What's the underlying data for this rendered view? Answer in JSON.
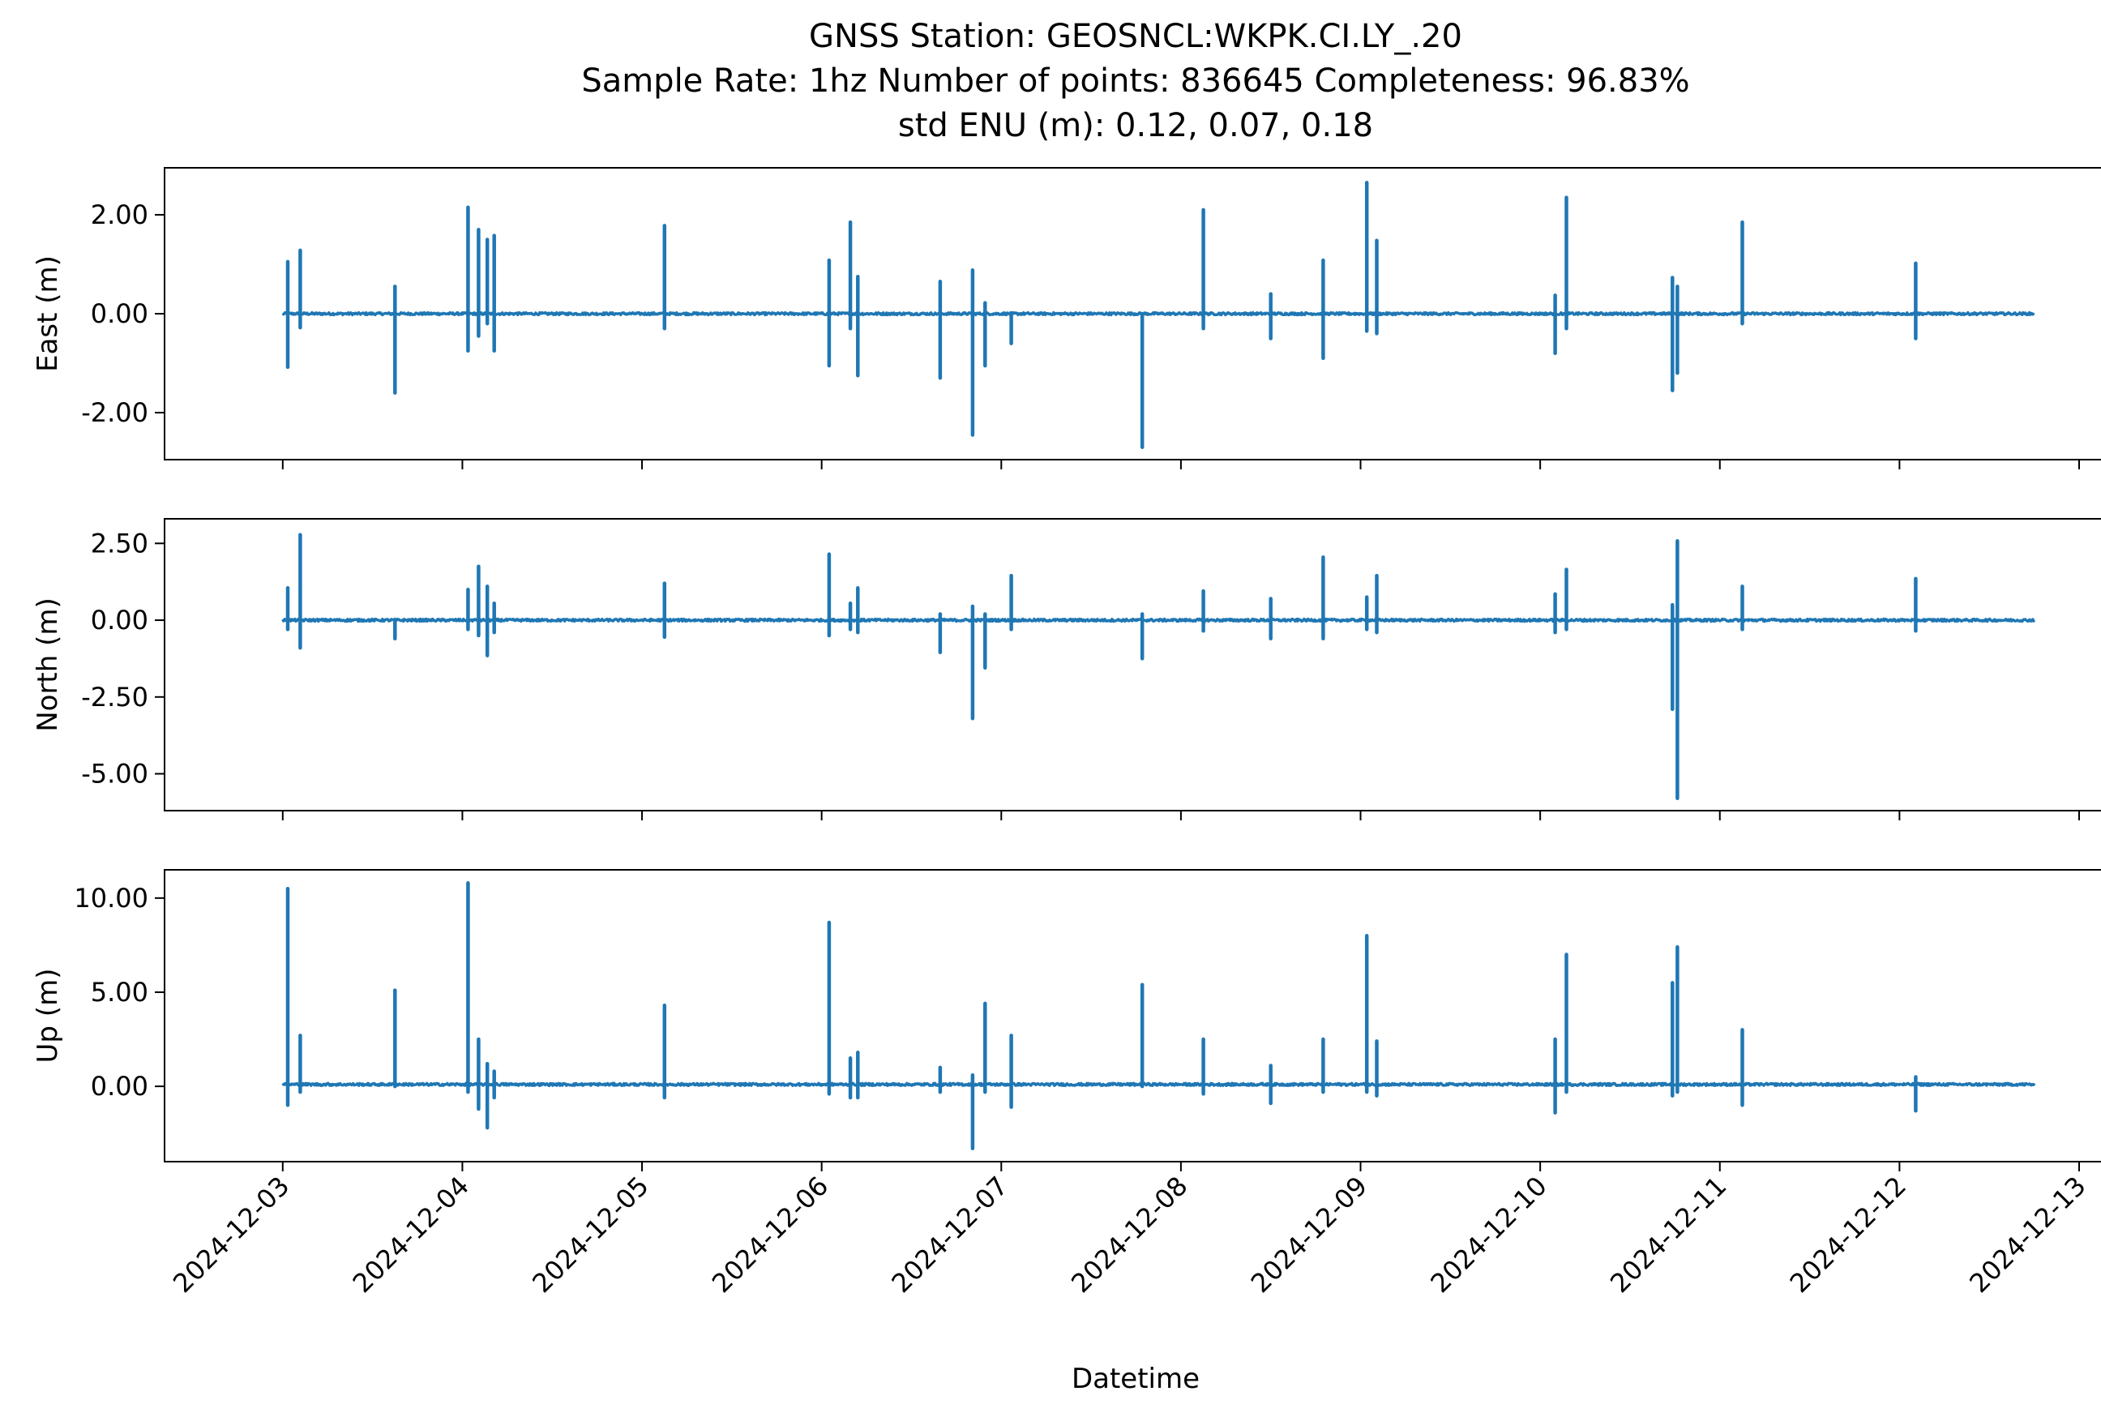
{
  "title_lines": [
    "GNSS Station: GEOSNCL:WKPK.CI.LY_.20",
    "Sample Rate: 1hz   Number of points: 836645    Completeness:  96.83%",
    "std ENU (m):  0.12, 0.07, 0.18"
  ],
  "colors": {
    "series": "#1f77b4",
    "axis": "#000000",
    "background": "#ffffff"
  },
  "chart_data": {
    "type": "line",
    "xlabel": "Datetime",
    "x_range": [
      "2024-12-02T12:00",
      "2024-12-13T00:00"
    ],
    "x_ticks": [
      "2024-12-03",
      "2024-12-04",
      "2024-12-05",
      "2024-12-06",
      "2024-12-07",
      "2024-12-08",
      "2024-12-09",
      "2024-12-10",
      "2024-12-11",
      "2024-12-12",
      "2024-12-13"
    ],
    "grid": false,
    "legend": "none",
    "panels": [
      {
        "name": "east",
        "ylabel": "East (m)",
        "ylim": [
          -2.95,
          2.95
        ],
        "yticks": [
          {
            "value": 2.0,
            "label": "2.00"
          },
          {
            "value": 0.0,
            "label": "0.00"
          },
          {
            "value": -2.0,
            "label": "-2.00"
          }
        ],
        "baseline": 0.0,
        "spikes": [
          {
            "t": "2024-12-03T00:40",
            "min": -1.08,
            "max": 1.05
          },
          {
            "t": "2024-12-03T02:20",
            "min": -0.28,
            "max": 1.28
          },
          {
            "t": "2024-12-03T15:00",
            "min": -1.6,
            "max": 0.55
          },
          {
            "t": "2024-12-04T00:45",
            "min": -0.75,
            "max": 2.15
          },
          {
            "t": "2024-12-04T02:10",
            "min": -0.45,
            "max": 1.7
          },
          {
            "t": "2024-12-04T03:20",
            "min": -0.2,
            "max": 1.5
          },
          {
            "t": "2024-12-04T04:15",
            "min": -0.75,
            "max": 1.58
          },
          {
            "t": "2024-12-05T03:00",
            "min": -0.3,
            "max": 1.78
          },
          {
            "t": "2024-12-06T01:00",
            "min": -1.05,
            "max": 1.08
          },
          {
            "t": "2024-12-06T03:50",
            "min": -0.3,
            "max": 1.85
          },
          {
            "t": "2024-12-06T04:50",
            "min": -1.25,
            "max": 0.75
          },
          {
            "t": "2024-12-06T15:50",
            "min": -1.3,
            "max": 0.65
          },
          {
            "t": "2024-12-06T20:10",
            "min": -2.45,
            "max": 0.88
          },
          {
            "t": "2024-12-06T21:50",
            "min": -1.05,
            "max": 0.22
          },
          {
            "t": "2024-12-07T01:20",
            "min": -0.6,
            "max": 0.0
          },
          {
            "t": "2024-12-07T18:50",
            "min": -2.7,
            "max": -0.05
          },
          {
            "t": "2024-12-08T03:00",
            "min": -0.3,
            "max": 2.1
          },
          {
            "t": "2024-12-08T12:00",
            "min": -0.5,
            "max": 0.4
          },
          {
            "t": "2024-12-08T19:00",
            "min": -0.9,
            "max": 1.08
          },
          {
            "t": "2024-12-09T00:50",
            "min": -0.35,
            "max": 2.65
          },
          {
            "t": "2024-12-09T02:10",
            "min": -0.4,
            "max": 1.48
          },
          {
            "t": "2024-12-10T02:00",
            "min": -0.8,
            "max": 0.37
          },
          {
            "t": "2024-12-10T03:30",
            "min": -0.3,
            "max": 2.35
          },
          {
            "t": "2024-12-10T17:40",
            "min": -1.55,
            "max": 0.73
          },
          {
            "t": "2024-12-10T18:20",
            "min": -1.2,
            "max": 0.55
          },
          {
            "t": "2024-12-11T03:00",
            "min": -0.2,
            "max": 1.85
          },
          {
            "t": "2024-12-12T02:10",
            "min": -0.5,
            "max": 1.02
          }
        ]
      },
      {
        "name": "north",
        "ylabel": "North (m)",
        "ylim": [
          -6.2,
          3.3
        ],
        "yticks": [
          {
            "value": 2.5,
            "label": "2.50"
          },
          {
            "value": 0.0,
            "label": "0.00"
          },
          {
            "value": -2.5,
            "label": "-2.50"
          },
          {
            "value": -5.0,
            "label": "-5.00"
          }
        ],
        "baseline": 0.0,
        "spikes": [
          {
            "t": "2024-12-03T00:40",
            "min": -0.3,
            "max": 1.05
          },
          {
            "t": "2024-12-03T02:20",
            "min": -0.9,
            "max": 2.78
          },
          {
            "t": "2024-12-03T15:00",
            "min": -0.6,
            "max": 0.0
          },
          {
            "t": "2024-12-04T00:45",
            "min": -0.3,
            "max": 1.0
          },
          {
            "t": "2024-12-04T02:10",
            "min": -0.5,
            "max": 1.75
          },
          {
            "t": "2024-12-04T03:20",
            "min": -1.15,
            "max": 1.1
          },
          {
            "t": "2024-12-04T04:15",
            "min": -0.4,
            "max": 0.55
          },
          {
            "t": "2024-12-05T03:00",
            "min": -0.55,
            "max": 1.2
          },
          {
            "t": "2024-12-06T01:00",
            "min": -0.5,
            "max": 2.15
          },
          {
            "t": "2024-12-06T03:50",
            "min": -0.3,
            "max": 0.55
          },
          {
            "t": "2024-12-06T04:50",
            "min": -0.4,
            "max": 1.05
          },
          {
            "t": "2024-12-06T15:50",
            "min": -1.05,
            "max": 0.2
          },
          {
            "t": "2024-12-06T20:10",
            "min": -3.2,
            "max": 0.45
          },
          {
            "t": "2024-12-06T21:50",
            "min": -1.55,
            "max": 0.2
          },
          {
            "t": "2024-12-07T01:20",
            "min": -0.3,
            "max": 1.45
          },
          {
            "t": "2024-12-07T18:50",
            "min": -1.25,
            "max": 0.2
          },
          {
            "t": "2024-12-08T03:00",
            "min": -0.35,
            "max": 0.95
          },
          {
            "t": "2024-12-08T12:00",
            "min": -0.6,
            "max": 0.7
          },
          {
            "t": "2024-12-08T19:00",
            "min": -0.6,
            "max": 2.05
          },
          {
            "t": "2024-12-09T00:50",
            "min": -0.3,
            "max": 0.75
          },
          {
            "t": "2024-12-09T02:10",
            "min": -0.4,
            "max": 1.45
          },
          {
            "t": "2024-12-10T02:00",
            "min": -0.4,
            "max": 0.85
          },
          {
            "t": "2024-12-10T03:30",
            "min": -0.3,
            "max": 1.65
          },
          {
            "t": "2024-12-10T17:40",
            "min": -2.9,
            "max": 0.5
          },
          {
            "t": "2024-12-10T18:20",
            "min": -5.8,
            "max": 2.58
          },
          {
            "t": "2024-12-11T03:00",
            "min": -0.3,
            "max": 1.1
          },
          {
            "t": "2024-12-12T02:10",
            "min": -0.35,
            "max": 1.35
          }
        ]
      },
      {
        "name": "up",
        "ylabel": "Up (m)",
        "ylim": [
          -4.0,
          11.5
        ],
        "yticks": [
          {
            "value": 10.0,
            "label": "10.00"
          },
          {
            "value": 5.0,
            "label": "5.00"
          },
          {
            "value": 0.0,
            "label": "0.00"
          }
        ],
        "baseline": 0.1,
        "spikes": [
          {
            "t": "2024-12-03T00:40",
            "min": -1.0,
            "max": 10.5
          },
          {
            "t": "2024-12-03T02:20",
            "min": -0.3,
            "max": 2.7
          },
          {
            "t": "2024-12-03T15:00",
            "min": 0.0,
            "max": 5.1
          },
          {
            "t": "2024-12-04T00:45",
            "min": -0.3,
            "max": 10.8
          },
          {
            "t": "2024-12-04T02:10",
            "min": -1.2,
            "max": 2.5
          },
          {
            "t": "2024-12-04T03:20",
            "min": -2.2,
            "max": 1.2
          },
          {
            "t": "2024-12-04T04:15",
            "min": -0.6,
            "max": 0.8
          },
          {
            "t": "2024-12-05T03:00",
            "min": -0.6,
            "max": 4.3
          },
          {
            "t": "2024-12-06T01:00",
            "min": -0.4,
            "max": 8.7
          },
          {
            "t": "2024-12-06T03:50",
            "min": -0.6,
            "max": 1.5
          },
          {
            "t": "2024-12-06T04:50",
            "min": -0.6,
            "max": 1.8
          },
          {
            "t": "2024-12-06T15:50",
            "min": -0.3,
            "max": 1.0
          },
          {
            "t": "2024-12-06T20:10",
            "min": -3.3,
            "max": 0.6
          },
          {
            "t": "2024-12-06T21:50",
            "min": -0.3,
            "max": 4.4
          },
          {
            "t": "2024-12-07T01:20",
            "min": -1.1,
            "max": 2.7
          },
          {
            "t": "2024-12-07T18:50",
            "min": 0.0,
            "max": 5.4
          },
          {
            "t": "2024-12-08T03:00",
            "min": -0.4,
            "max": 2.5
          },
          {
            "t": "2024-12-08T12:00",
            "min": -0.9,
            "max": 1.1
          },
          {
            "t": "2024-12-08T19:00",
            "min": -0.3,
            "max": 2.5
          },
          {
            "t": "2024-12-09T00:50",
            "min": -0.3,
            "max": 8.0
          },
          {
            "t": "2024-12-09T02:10",
            "min": -0.5,
            "max": 2.4
          },
          {
            "t": "2024-12-10T02:00",
            "min": -1.4,
            "max": 2.5
          },
          {
            "t": "2024-12-10T03:30",
            "min": -0.3,
            "max": 7.0
          },
          {
            "t": "2024-12-10T17:40",
            "min": -0.5,
            "max": 5.5
          },
          {
            "t": "2024-12-10T18:20",
            "min": -0.3,
            "max": 7.4
          },
          {
            "t": "2024-12-11T03:00",
            "min": -1.0,
            "max": 3.0
          },
          {
            "t": "2024-12-12T02:10",
            "min": -1.3,
            "max": 0.5
          }
        ]
      }
    ]
  }
}
